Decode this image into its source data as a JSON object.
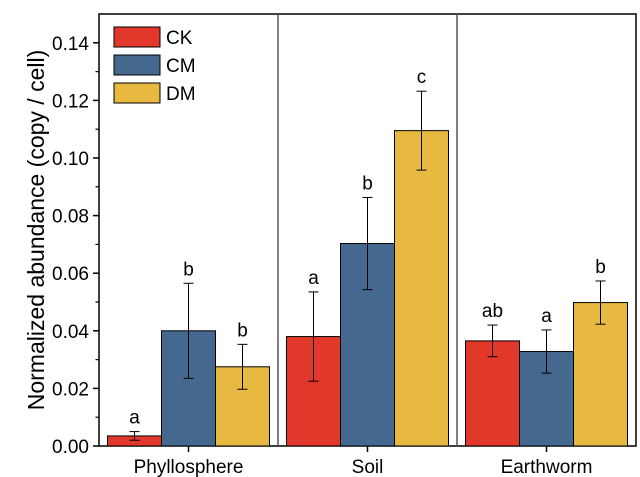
{
  "chart_data": {
    "type": "bar",
    "ylabel": "Normalized abundance (copy / cell)",
    "xlabel": "",
    "ylim": [
      0,
      0.15
    ],
    "yticks": [
      0.0,
      0.02,
      0.04,
      0.06,
      0.08,
      0.1,
      0.12,
      0.14
    ],
    "ytick_labels": [
      "0.00",
      "0.02",
      "0.04",
      "0.06",
      "0.08",
      "0.10",
      "0.12",
      "0.14"
    ],
    "categories": [
      "Phyllosphere",
      "Soil",
      "Earthworm"
    ],
    "legend_position": "top-left",
    "grid": false,
    "panel_separators": true,
    "series": [
      {
        "name": "CK",
        "color": "#e2372b",
        "values": [
          0.0035,
          0.038,
          0.0365
        ],
        "errors": [
          0.0015,
          0.0155,
          0.0055
        ],
        "significance": [
          "a",
          "a",
          "ab"
        ]
      },
      {
        "name": "CM",
        "color": "#45688f",
        "values": [
          0.04,
          0.0703,
          0.0328
        ],
        "errors": [
          0.0165,
          0.016,
          0.0075
        ],
        "significance": [
          "b",
          "b",
          "a"
        ]
      },
      {
        "name": "DM",
        "color": "#e7b941",
        "values": [
          0.0275,
          0.1095,
          0.0498
        ],
        "errors": [
          0.0078,
          0.0137,
          0.0075
        ],
        "significance": [
          "b",
          "c",
          "b"
        ]
      }
    ]
  }
}
